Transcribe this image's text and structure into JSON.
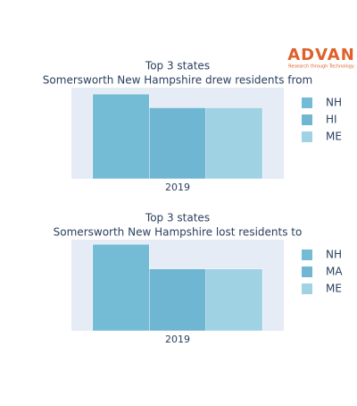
{
  "logo": {
    "name": "ADVAN",
    "tagline": "Research through Technology"
  },
  "chart_data": [
    {
      "type": "bar",
      "title": "Top 3 states",
      "subtitle": "Somersworth New Hampshire drew residents from",
      "categories": [
        "2019"
      ],
      "ylim": [
        0,
        1
      ],
      "series": [
        {
          "name": "NH",
          "color": "#74bcd6",
          "values": [
            0.93
          ]
        },
        {
          "name": "HI",
          "color": "#6fb6d3",
          "values": [
            0.78
          ]
        },
        {
          "name": "ME",
          "color": "#9fd2e3",
          "values": [
            0.78
          ]
        }
      ]
    },
    {
      "type": "bar",
      "title": "Top 3 states",
      "subtitle": "Somersworth New Hampshire lost residents to",
      "categories": [
        "2019"
      ],
      "ylim": [
        0,
        1
      ],
      "series": [
        {
          "name": "NH",
          "color": "#74bcd6",
          "values": [
            0.95
          ]
        },
        {
          "name": "MA",
          "color": "#6fb6d3",
          "values": [
            0.68
          ]
        },
        {
          "name": "ME",
          "color": "#9fd2e3",
          "values": [
            0.68
          ]
        }
      ]
    }
  ]
}
